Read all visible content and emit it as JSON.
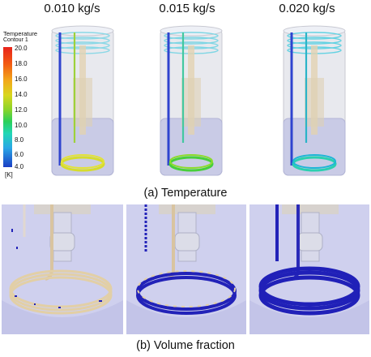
{
  "columns": [
    {
      "title": "0.010 kg/s",
      "coil_color": "#d6dc2c",
      "pipe_color": "#2f44cf"
    },
    {
      "title": "0.015 kg/s",
      "coil_color": "#47cf3a",
      "pipe_color": "#2f44cf"
    },
    {
      "title": "0.020 kg/s",
      "coil_color": "#2bd0b0",
      "pipe_color": "#2f44cf"
    }
  ],
  "legend": {
    "title": "Temperature",
    "subtitle": "Contour 1",
    "ticks": [
      "20.0",
      "18.0",
      "16.0",
      "14.0",
      "12.0",
      "10.0",
      "8.0",
      "6.0",
      "4.0"
    ],
    "unit": "[K]"
  },
  "captions": {
    "top": "(a) Temperature",
    "bottom": "(b) Volume fraction"
  },
  "colors": {
    "tank_fill": "#e4e6f0",
    "liquid_fill": "#b7b8e4",
    "vapor_blue": "#2222b8",
    "coil_beige": "#e6d3b0"
  }
}
